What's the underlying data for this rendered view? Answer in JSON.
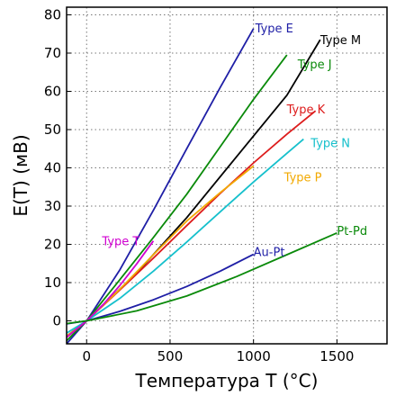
{
  "chart_data": {
    "type": "line",
    "title": "",
    "xlabel": "Температура T (°C)",
    "ylabel": "E(T) (мВ)",
    "xlim": [
      -120,
      1800
    ],
    "ylim": [
      -6,
      82
    ],
    "xticks": [
      0,
      500,
      1000,
      1500
    ],
    "yticks": [
      0,
      10,
      20,
      30,
      40,
      50,
      60,
      70,
      80
    ],
    "grid": true,
    "grid_style": "dotted",
    "series": [
      {
        "name": "Type E",
        "color": "#1f1fa6",
        "x": [
          -120,
          0,
          200,
          400,
          600,
          800,
          1000
        ],
        "y": [
          -6,
          0,
          13.4,
          28.9,
          45.0,
          61.0,
          76.4
        ]
      },
      {
        "name": "Type J",
        "color": "#0a8a0a",
        "x": [
          -120,
          0,
          200,
          400,
          600,
          800,
          1000,
          1200
        ],
        "y": [
          -5.2,
          0,
          10.8,
          21.8,
          33.1,
          45.5,
          57.9,
          69.5
        ]
      },
      {
        "name": "Type M",
        "color": "#000000",
        "x": [
          -120,
          0,
          300,
          600,
          900,
          1200,
          1400
        ],
        "y": [
          -4,
          0,
          12.5,
          27,
          43,
          59,
          73.5
        ]
      },
      {
        "name": "Type K",
        "color": "#dd1c1c",
        "x": [
          -120,
          0,
          200,
          400,
          600,
          800,
          1000,
          1200,
          1372
        ],
        "y": [
          -4.3,
          0,
          8.1,
          16.4,
          24.9,
          33.3,
          41.3,
          48.8,
          54.9
        ]
      },
      {
        "name": "Type P",
        "color": "#f2a900",
        "x": [
          -120,
          0,
          200,
          400,
          600,
          800,
          1000
        ],
        "y": [
          -4.0,
          0,
          8.3,
          17.3,
          26.1,
          33.5,
          40.5
        ]
      },
      {
        "name": "Type N",
        "color": "#16c0cc",
        "x": [
          -120,
          0,
          200,
          400,
          600,
          800,
          1000,
          1200,
          1300
        ],
        "y": [
          -3.2,
          0,
          5.9,
          13.0,
          20.6,
          28.5,
          36.3,
          43.8,
          47.5
        ]
      },
      {
        "name": "Type T",
        "color": "#d000d0",
        "x": [
          -120,
          0,
          100,
          200,
          300,
          400
        ],
        "y": [
          -4.3,
          0,
          4.3,
          9.3,
          14.9,
          20.9
        ]
      },
      {
        "name": "Au-Pt",
        "color": "#1f1fa6",
        "x": [
          -120,
          0,
          200,
          400,
          600,
          800,
          1000
        ],
        "y": [
          -0.8,
          0,
          2.5,
          5.5,
          9.0,
          13.0,
          17.4
        ]
      },
      {
        "name": "Pt-Pd",
        "color": "#0a8a0a",
        "x": [
          -120,
          0,
          300,
          600,
          900,
          1200,
          1500
        ],
        "y": [
          -0.7,
          0,
          2.6,
          6.5,
          11.6,
          17.3,
          23.0
        ]
      }
    ]
  }
}
